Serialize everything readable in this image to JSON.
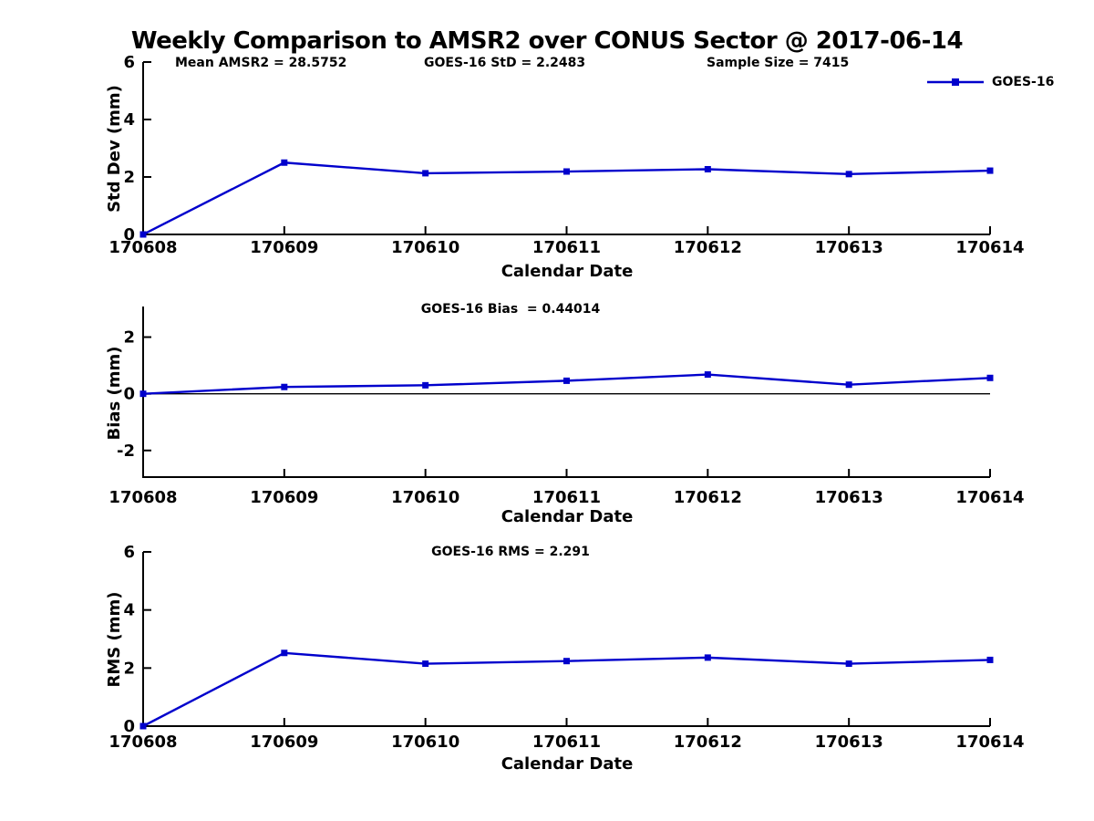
{
  "title": "Weekly Comparison to AMSR2 over CONUS Sector @ 2017-06-14",
  "annotations": {
    "mean_amsr2": "Mean AMSR2 = 28.5752",
    "goes16_std": "GOES-16 StD = 2.2483",
    "sample_size": "Sample Size = 7415"
  },
  "legend": {
    "label": "GOES-16",
    "position": "top-right"
  },
  "colors": {
    "line": "#0000CC",
    "axis": "#000000",
    "background": "#FFFFFF"
  },
  "chart_data": [
    {
      "type": "line",
      "title": "",
      "ylabel": "Std Dev (mm)",
      "xlabel": "Calendar Date",
      "categories": [
        "170608",
        "170609",
        "170610",
        "170611",
        "170612",
        "170613",
        "170614"
      ],
      "series": [
        {
          "name": "GOES-16",
          "values": [
            0.0,
            2.5,
            2.13,
            2.19,
            2.27,
            2.1,
            2.22
          ]
        }
      ],
      "ylim": [
        0,
        6
      ],
      "yticks": [
        0,
        2,
        4,
        6
      ],
      "zero_line": false,
      "marker": "square",
      "grid": false
    },
    {
      "type": "line",
      "title": "GOES-16 Bias  = 0.44014",
      "ylabel": "Bias (mm)",
      "xlabel": "Calendar Date",
      "categories": [
        "170608",
        "170609",
        "170610",
        "170611",
        "170612",
        "170613",
        "170614"
      ],
      "series": [
        {
          "name": "GOES-16",
          "values": [
            0.0,
            0.24,
            0.3,
            0.46,
            0.68,
            0.32,
            0.56
          ]
        }
      ],
      "ylim": [
        -2.94,
        3.08
      ],
      "yticks": [
        -2,
        0,
        2
      ],
      "zero_line": true,
      "marker": "square",
      "grid": false
    },
    {
      "type": "line",
      "title": "GOES-16 RMS = 2.291",
      "ylabel": "RMS (mm)",
      "xlabel": "Calendar Date",
      "categories": [
        "170608",
        "170609",
        "170610",
        "170611",
        "170612",
        "170613",
        "170614"
      ],
      "series": [
        {
          "name": "GOES-16",
          "values": [
            0.0,
            2.52,
            2.15,
            2.24,
            2.36,
            2.15,
            2.28
          ]
        }
      ],
      "ylim": [
        0,
        6
      ],
      "yticks": [
        0,
        2,
        4,
        6
      ],
      "zero_line": false,
      "marker": "square",
      "grid": false
    }
  ]
}
